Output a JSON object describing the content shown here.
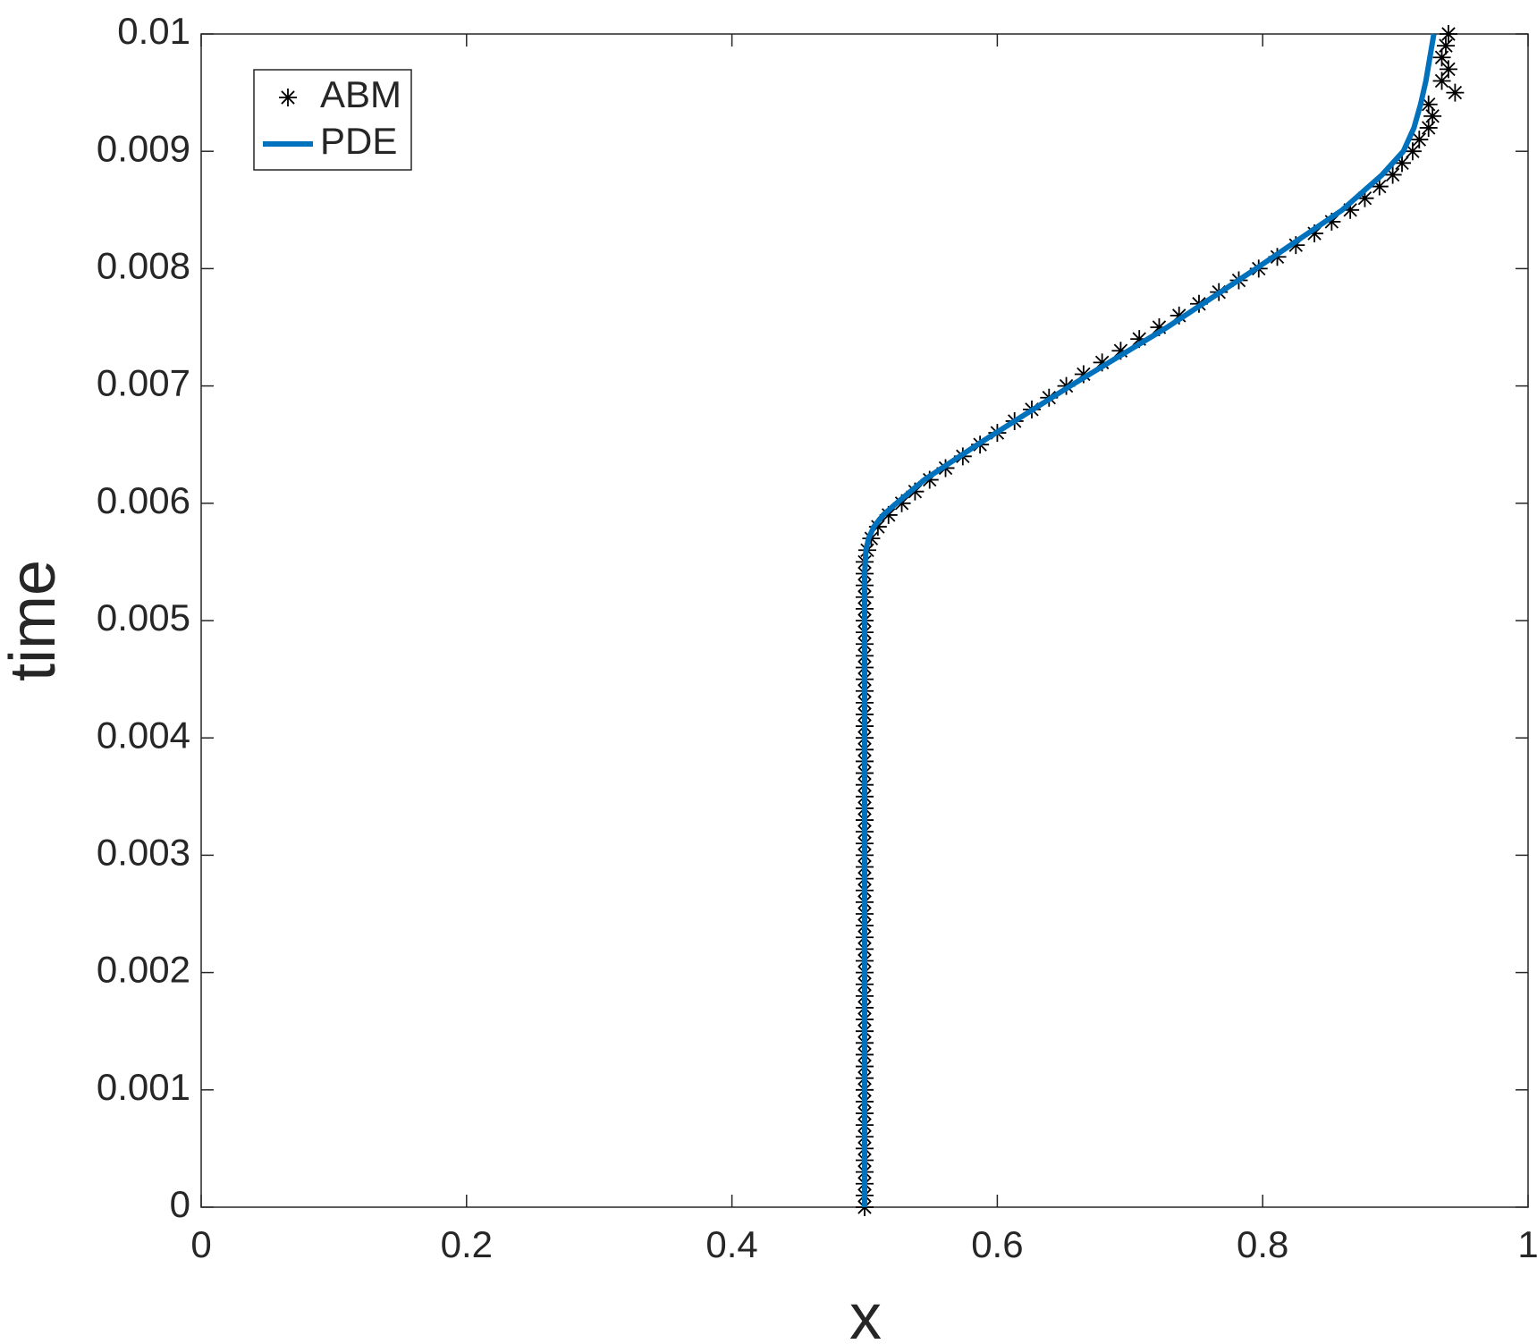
{
  "chart_data": {
    "type": "line",
    "xlabel": "x",
    "ylabel": "time",
    "xlim": [
      0,
      1
    ],
    "ylim": [
      0,
      0.01
    ],
    "xticks": [
      0,
      0.2,
      0.4,
      0.6,
      0.8,
      1
    ],
    "yticks": [
      0,
      0.001,
      0.002,
      0.003,
      0.004,
      0.005,
      0.006,
      0.007,
      0.008,
      0.009,
      0.01
    ],
    "legend": "upper left",
    "series": [
      {
        "name": "ABM",
        "mode": "markers",
        "marker": "*",
        "color": "#000000",
        "x": [
          0.5,
          0.5,
          0.5,
          0.5,
          0.5,
          0.5,
          0.5,
          0.5,
          0.5,
          0.5,
          0.5,
          0.5,
          0.5,
          0.5,
          0.5,
          0.5,
          0.5,
          0.5,
          0.5,
          0.5,
          0.5,
          0.5,
          0.5,
          0.5,
          0.5,
          0.5,
          0.5,
          0.5,
          0.5,
          0.5,
          0.5,
          0.5,
          0.5,
          0.5,
          0.5,
          0.5,
          0.5,
          0.5,
          0.5,
          0.5,
          0.5,
          0.5,
          0.5,
          0.5,
          0.5,
          0.5,
          0.5,
          0.5,
          0.5,
          0.5,
          0.5,
          0.5,
          0.5,
          0.5,
          0.5,
          0.5,
          0.502,
          0.505,
          0.51,
          0.518,
          0.528,
          0.538,
          0.549,
          0.561,
          0.574,
          0.587,
          0.6,
          0.613,
          0.626,
          0.639,
          0.652,
          0.665,
          0.679,
          0.693,
          0.707,
          0.722,
          0.737,
          0.752,
          0.767,
          0.782,
          0.797,
          0.811,
          0.825,
          0.839,
          0.852,
          0.866,
          0.877,
          0.888,
          0.898,
          0.905,
          0.913,
          0.918,
          0.925,
          0.928,
          0.925,
          0.945,
          0.935,
          0.94,
          0.935,
          0.938,
          0.94
        ],
        "values": [
          0,
          0.0001,
          0.0002,
          0.0003,
          0.0004,
          0.0005,
          0.0006,
          0.0007,
          0.0008,
          0.0009,
          0.001,
          0.0011,
          0.0012,
          0.0013,
          0.0014,
          0.0015,
          0.0016,
          0.0017,
          0.0018,
          0.0019,
          0.002,
          0.0021,
          0.0022,
          0.0023,
          0.0024,
          0.0025,
          0.0026,
          0.0027,
          0.0028,
          0.0029,
          0.003,
          0.0031,
          0.0032,
          0.0033,
          0.0034,
          0.0035,
          0.0036,
          0.0037,
          0.0038,
          0.0039,
          0.004,
          0.0041,
          0.0042,
          0.0043,
          0.0044,
          0.0045,
          0.0046,
          0.0047,
          0.0048,
          0.0049,
          0.005,
          0.0051,
          0.0052,
          0.0053,
          0.0054,
          0.0055,
          0.0056,
          0.0057,
          0.0058,
          0.0059,
          0.006,
          0.0061,
          0.0062,
          0.0063,
          0.0064,
          0.0065,
          0.0066,
          0.0067,
          0.0068,
          0.0069,
          0.007,
          0.0071,
          0.0072,
          0.0073,
          0.0074,
          0.0075,
          0.0076,
          0.0077,
          0.0078,
          0.0079,
          0.008,
          0.0081,
          0.0082,
          0.0083,
          0.0084,
          0.0085,
          0.0086,
          0.0087,
          0.0088,
          0.0089,
          0.009,
          0.0091,
          0.0092,
          0.0093,
          0.0094,
          0.0095,
          0.0096,
          0.0097,
          0.0098,
          0.0099,
          0.01
        ]
      },
      {
        "name": "PDE",
        "mode": "line",
        "color": "#0072bd",
        "x": [
          0.5,
          0.5,
          0.5,
          0.5,
          0.5,
          0.5,
          0.5,
          0.501,
          0.503,
          0.507,
          0.514,
          0.524,
          0.545,
          0.585,
          0.655,
          0.728,
          0.795,
          0.86,
          0.89,
          0.906,
          0.914,
          0.919,
          0.923,
          0.926,
          0.929
        ],
        "values": [
          0,
          0.001,
          0.002,
          0.003,
          0.004,
          0.005,
          0.0054,
          0.0056,
          0.0057,
          0.0058,
          0.0059,
          0.006,
          0.0062,
          0.0065,
          0.007,
          0.0075,
          0.008,
          0.0085,
          0.0088,
          0.009,
          0.0092,
          0.0094,
          0.0096,
          0.0098,
          0.01
        ]
      }
    ]
  }
}
